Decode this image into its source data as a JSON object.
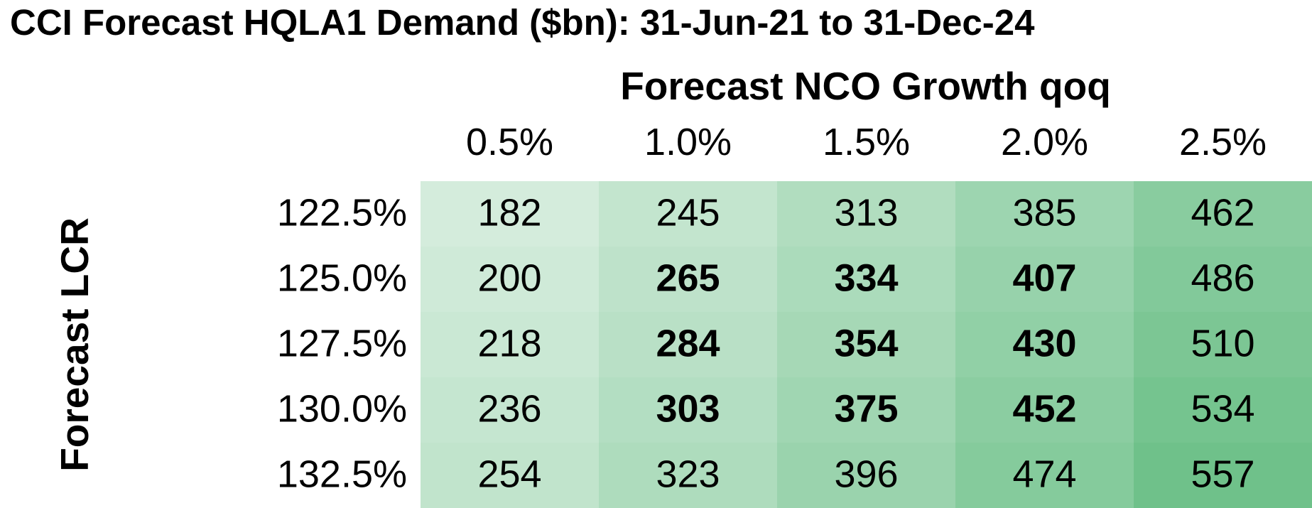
{
  "chart_data": {
    "type": "heatmap",
    "title": "CCI Forecast HQLA1 Demand ($bn): 31-Jun-21 to 31-Dec-24",
    "xlabel": "Forecast NCO Growth qoq",
    "ylabel": "Forecast LCR",
    "x_categories": [
      "0.5%",
      "1.0%",
      "1.5%",
      "2.0%",
      "2.5%"
    ],
    "y_categories": [
      "122.5%",
      "125.0%",
      "127.5%",
      "130.0%",
      "132.5%"
    ],
    "values": [
      [
        182,
        245,
        313,
        385,
        462
      ],
      [
        200,
        265,
        334,
        407,
        486
      ],
      [
        218,
        284,
        354,
        430,
        510
      ],
      [
        236,
        303,
        375,
        452,
        534
      ],
      [
        254,
        323,
        396,
        474,
        557
      ]
    ],
    "bold_cells": [
      [
        1,
        1
      ],
      [
        1,
        2
      ],
      [
        1,
        3
      ],
      [
        2,
        1
      ],
      [
        2,
        2
      ],
      [
        2,
        3
      ],
      [
        3,
        1
      ],
      [
        3,
        2
      ],
      [
        3,
        3
      ]
    ],
    "color_scale": {
      "low": "#d4ecdc",
      "high": "#6fc18a"
    }
  }
}
